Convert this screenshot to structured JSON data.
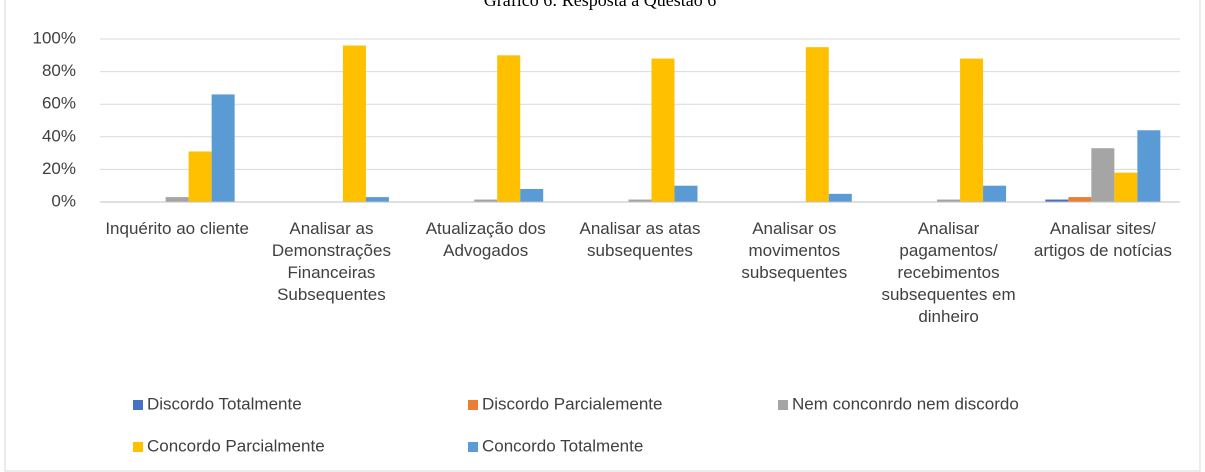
{
  "chart_data": {
    "type": "bar",
    "title": "Gráfico 6: Resposta à Questão 6",
    "categories": [
      "Inquérito ao cliente",
      "Analisar as Demonstrações Financeiras Subsequentes",
      "Atualização dos Advogados",
      "Analisar as atas subsequentes",
      "Analisar os movimentos subsequentes",
      "Analisar pagamentos/ recebimentos subsequentes em dinheiro",
      "Analisar sites/ artigos de notícias"
    ],
    "series": [
      {
        "name": "Discordo Totalmente",
        "color": "#4472c4",
        "values": [
          0,
          0,
          0,
          0,
          0,
          0,
          1.5
        ]
      },
      {
        "name": "Discordo Parcialemente",
        "color": "#ed7d31",
        "values": [
          0,
          0,
          0,
          0,
          0,
          0,
          3
        ]
      },
      {
        "name": "Nem conconrdo nem discordo",
        "color": "#a5a5a5",
        "values": [
          3,
          0,
          1.5,
          1.5,
          0,
          1.5,
          33
        ]
      },
      {
        "name": "Concordo Parcialmente",
        "color": "#ffc000",
        "values": [
          31,
          96,
          90,
          88,
          95,
          88,
          18
        ]
      },
      {
        "name": "Concordo Totalmente",
        "color": "#5b9bd5",
        "values": [
          66,
          3,
          8,
          10,
          5,
          10,
          44
        ]
      }
    ],
    "ylim": [
      0,
      100
    ],
    "yticks": [
      {
        "value": 0,
        "label": "0%"
      },
      {
        "value": 20,
        "label": "20%"
      },
      {
        "value": 40,
        "label": "40%"
      },
      {
        "value": 60,
        "label": "60%"
      },
      {
        "value": 80,
        "label": "80%"
      },
      {
        "value": 100,
        "label": "100%"
      }
    ],
    "grid": true
  }
}
